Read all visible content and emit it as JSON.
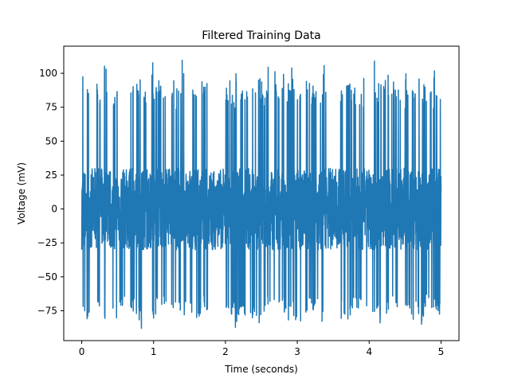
{
  "chart_data": {
    "type": "line",
    "title": "Filtered Training Data",
    "xlabel": "Time (seconds)",
    "ylabel": "Voltage (mV)",
    "xlim": [
      -0.25,
      5.25
    ],
    "ylim": [
      -97,
      120
    ],
    "xticks": [
      0,
      1,
      2,
      3,
      4,
      5
    ],
    "yticks": [
      -75,
      -50,
      -25,
      0,
      25,
      50,
      75,
      100
    ],
    "grid": false,
    "legend": "none",
    "series": [
      {
        "name": "",
        "color": "#1f77b4",
        "x_start": 0,
        "x_end": 5,
        "burst_windows": [
          [
            0.0,
            0.12
          ],
          [
            0.18,
            0.35
          ],
          [
            0.42,
            0.62
          ],
          [
            0.68,
            0.9
          ],
          [
            0.97,
            1.18
          ],
          [
            1.25,
            1.45
          ],
          [
            1.5,
            1.75
          ],
          [
            2.0,
            2.62
          ],
          [
            2.65,
            3.05
          ],
          [
            3.1,
            3.4
          ],
          [
            3.6,
            3.98
          ],
          [
            4.05,
            4.45
          ],
          [
            4.5,
            5.0
          ]
        ],
        "peak_values": [
          102,
          88,
          90,
          95,
          91,
          96,
          85,
          89,
          90,
          86,
          110,
          109,
          90,
          88,
          90,
          93,
          94,
          92,
          95,
          93,
          95
        ],
        "trough_values": [
          -77,
          -76,
          -83,
          -80,
          -82,
          -78,
          -78,
          -77,
          -82,
          -89,
          -85,
          -84,
          -82,
          -79,
          -75,
          -74,
          -73,
          -72,
          -76,
          -74,
          -75,
          -73
        ],
        "baseline_range": [
          -30,
          30
        ]
      }
    ]
  }
}
